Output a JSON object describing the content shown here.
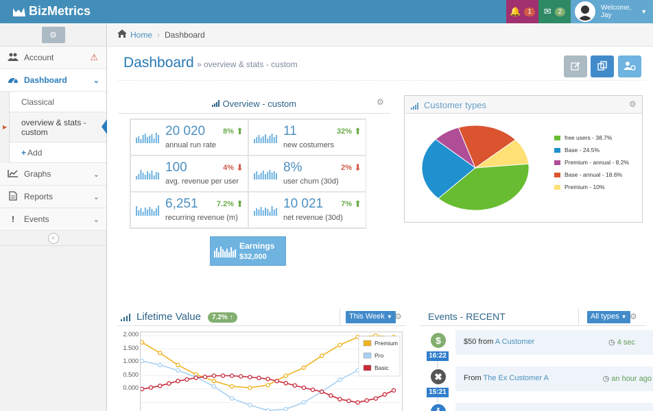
{
  "navbar": {
    "brand": "BizMetrics",
    "notifications_count": "1",
    "messages_count": "2",
    "welcome": "Welcome,",
    "user": "Jay",
    "colors": {
      "bar": "#438eb9",
      "notif": "#a0306f",
      "msg": "#2e8965",
      "user": "#62a8d1"
    }
  },
  "sidebar": {
    "items": [
      {
        "label": "Account",
        "icon": "users-icon"
      },
      {
        "label": "Dashboard",
        "icon": "dashboard-icon"
      },
      {
        "label": "Graphs",
        "icon": "graph-icon"
      },
      {
        "label": "Reports",
        "icon": "file-icon"
      },
      {
        "label": "Events",
        "icon": "exclamation-icon"
      }
    ],
    "subitems": [
      "Classical",
      "overview & stats - custom",
      "Add"
    ]
  },
  "breadcrumb": {
    "home": "Home",
    "current": "Dashboard"
  },
  "header": {
    "title": "Dashboard",
    "subtitle": "» overview & stats - custom"
  },
  "overview": {
    "title": "Overview - custom",
    "stats": [
      {
        "value": "20 020",
        "label": "annual run rate",
        "pct": "8%",
        "trend": "up"
      },
      {
        "value": "11",
        "label": "new costumers",
        "pct": "32%",
        "trend": "up"
      },
      {
        "value": "100",
        "label": "avg. revenue per user",
        "pct": "4%",
        "trend": "down"
      },
      {
        "value": "8%",
        "label": "user churn (30d)",
        "pct": "2%",
        "trend": "down"
      },
      {
        "value": "6,251",
        "label": "recurring revenue (m)",
        "pct": "7.2%",
        "trend": "up"
      },
      {
        "value": "10 021",
        "label": "net revenue (30d)",
        "pct": "7%",
        "trend": "up"
      }
    ],
    "earnings_label": "Earnings",
    "earnings_value": "$32,000"
  },
  "customer_types": {
    "title": "Customer types",
    "legend": [
      "free users - 38.7%",
      "Base - 24.5%",
      "Premium - annual - 8.2%",
      "Base - annual - 18.6%",
      "Premium - 10%"
    ]
  },
  "lifetime": {
    "title": "Lifetime Value",
    "badge": "7.2%",
    "range": "This Week",
    "legend": [
      "Premium",
      "Pro",
      "Basic"
    ]
  },
  "events": {
    "title": "Events - RECENT",
    "filter": "All types",
    "items": [
      {
        "text": "$50 from ",
        "link": "A Customer",
        "ago": "4 sec",
        "time": "16:22",
        "icon": "dollar-icon"
      },
      {
        "text": "From ",
        "link": "The Ex Customer A",
        "ago": "an hour ago",
        "time": "15:21",
        "icon": "close-icon"
      }
    ]
  },
  "chart_data": [
    {
      "type": "pie",
      "title": "Customer types",
      "categories": [
        "free users",
        "Base",
        "Premium - annual",
        "Base - annual",
        "Premium"
      ],
      "values": [
        38.7,
        24.5,
        8.2,
        18.6,
        10
      ],
      "colors": [
        "#68bc31",
        "#2091cf",
        "#af4e96",
        "#da5430",
        "#fee074"
      ]
    },
    {
      "type": "line",
      "title": "Lifetime Value",
      "ylim": [
        -0.5,
        2.0
      ],
      "yticks": [
        "2.000",
        "1.500",
        "1.000",
        "0.500",
        "0.000"
      ],
      "series": [
        {
          "name": "Premium",
          "color": "#f0b323",
          "values": [
            1.75,
            1.35,
            0.9,
            0.55,
            0.3,
            0.1,
            0.05,
            0.15,
            0.5,
            0.8,
            1.25,
            1.65,
            1.95,
            2.0,
            1.95
          ]
        },
        {
          "name": "Pro",
          "color": "#a8d0f1",
          "values": [
            1.05,
            0.9,
            0.7,
            0.45,
            0.1,
            -0.35,
            -0.6,
            -0.8,
            -0.75,
            -0.5,
            -0.1,
            0.35,
            0.7,
            0.95,
            1.0
          ]
        },
        {
          "name": "Basic",
          "color": "#c7293b",
          "values": [
            0.0,
            0.12,
            0.3,
            0.42,
            0.5,
            0.5,
            0.45,
            0.38,
            0.22,
            0.05,
            -0.1,
            -0.38,
            -0.5,
            -0.35,
            -0.05
          ]
        }
      ]
    }
  ]
}
